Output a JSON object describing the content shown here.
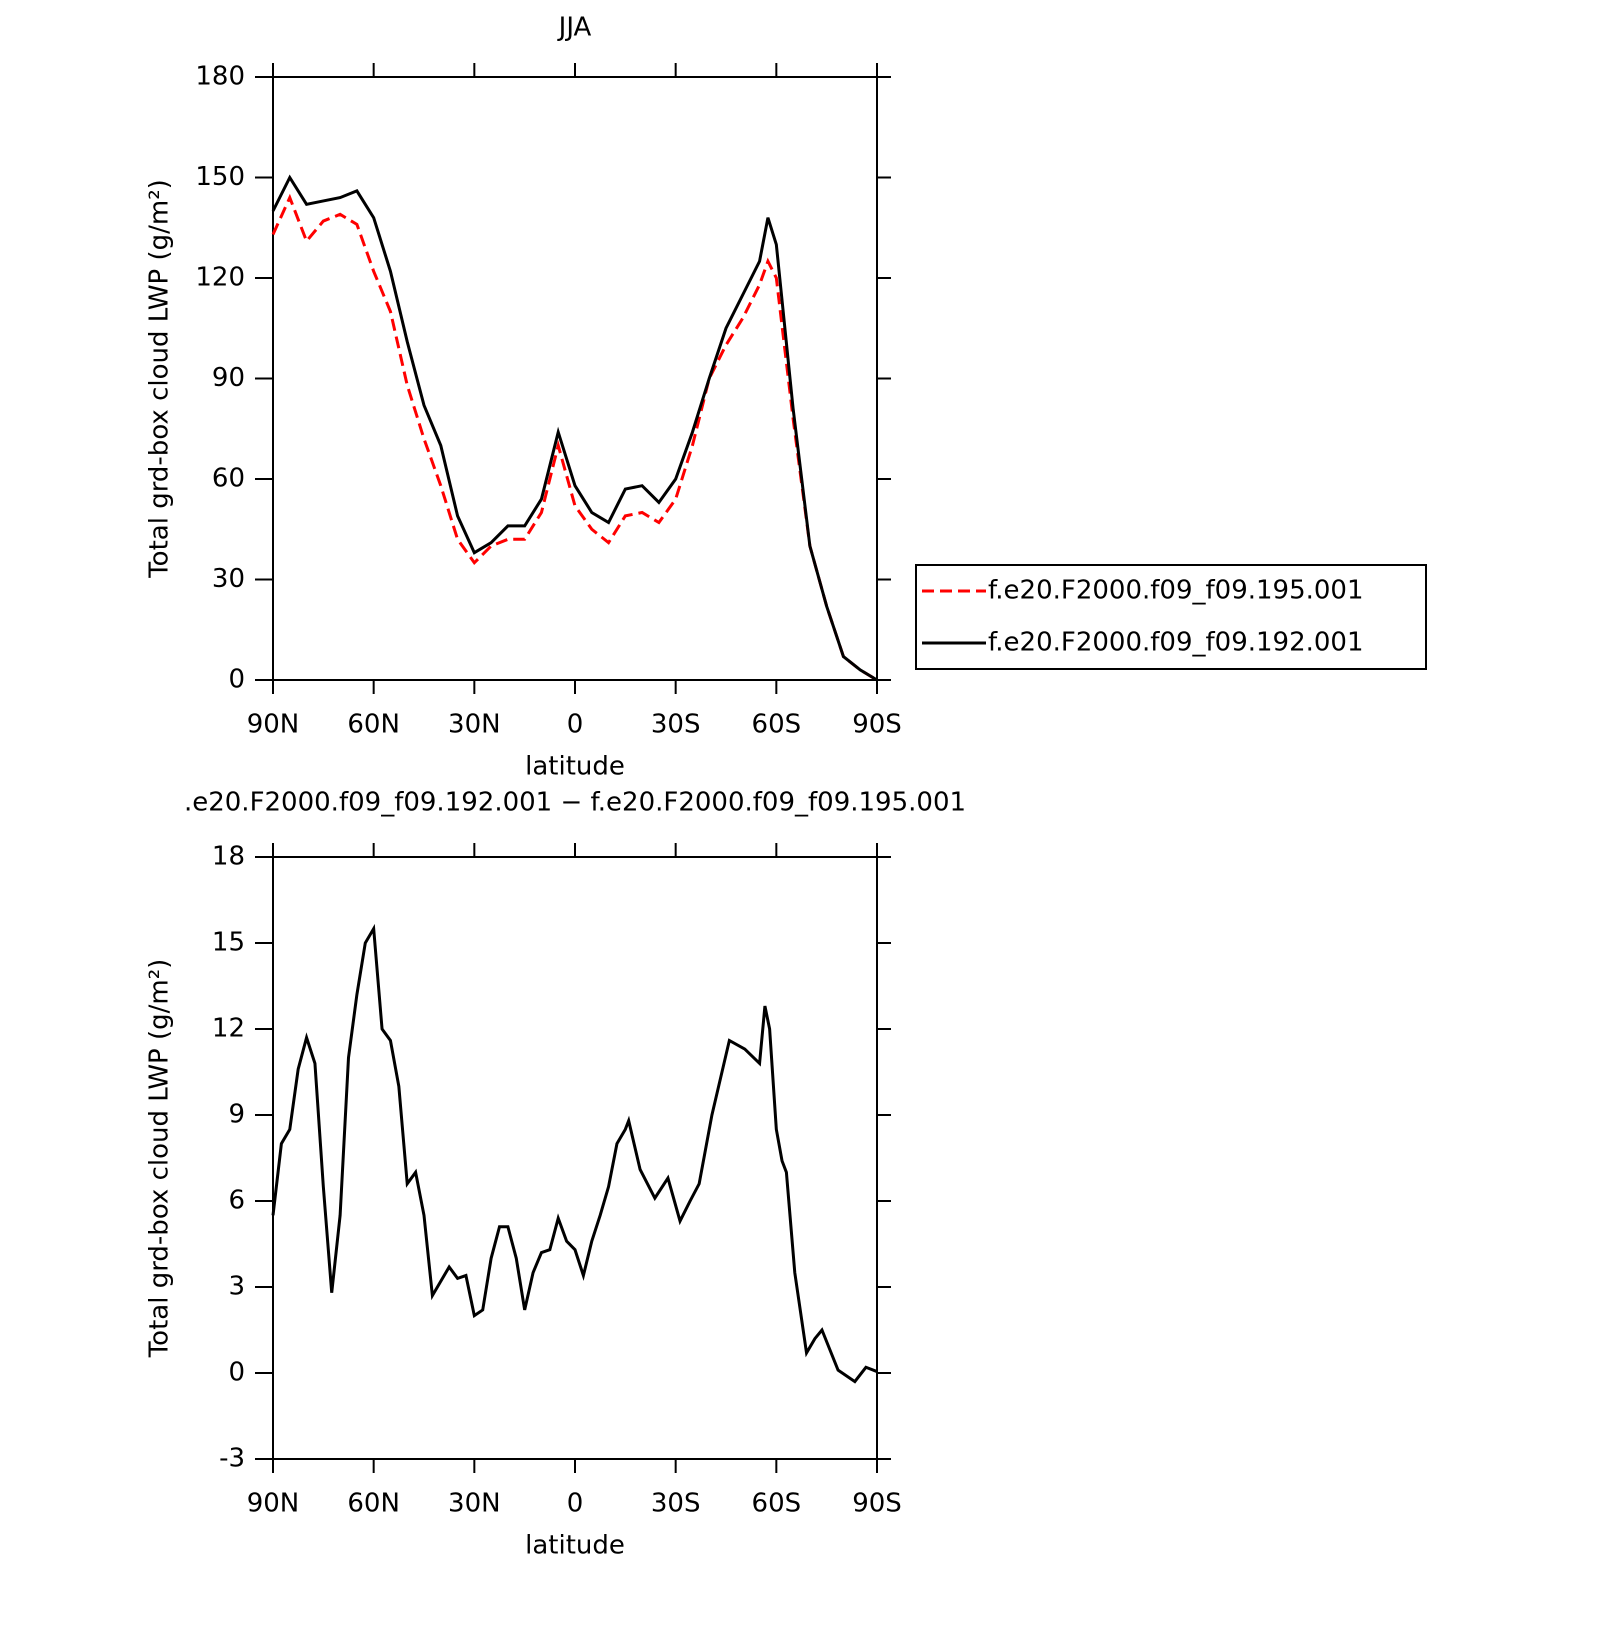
{
  "chart_data": [
    {
      "type": "line",
      "title": "JJA",
      "x_label": "latitude",
      "y_label": "Total grd-box cloud LWP (g/m²)",
      "x": [
        90,
        85,
        80,
        75,
        70,
        65,
        60,
        55,
        50,
        45,
        40,
        35,
        30,
        25,
        20,
        15,
        10,
        5,
        0,
        -5,
        -10,
        -15,
        -20,
        -25,
        -30,
        -35,
        -40,
        -45,
        -50,
        -55,
        -57.5,
        -60,
        -65,
        -70,
        -75,
        -80,
        -85,
        -90
      ],
      "xlim": [
        90,
        -90
      ],
      "xticks": [
        {
          "value": 90,
          "label": "90N"
        },
        {
          "value": 60,
          "label": "60N"
        },
        {
          "value": 30,
          "label": "30N"
        },
        0,
        {
          "value": -30,
          "label": "30S"
        },
        {
          "value": -60,
          "label": "60S"
        },
        {
          "value": -90,
          "label": "90S"
        }
      ],
      "ylim": [
        0,
        180
      ],
      "yticks": [
        0,
        30,
        60,
        90,
        120,
        150,
        180
      ],
      "legend": "right",
      "series": [
        {
          "name": "f.e20.F2000.f09_f09.195.001",
          "color": "#ff0000",
          "style": "dashed",
          "values": [
            133,
            144,
            131,
            137,
            139,
            136,
            122,
            110,
            88,
            72,
            58,
            42,
            35,
            40,
            42,
            42,
            50,
            70,
            52,
            45,
            41,
            49,
            50,
            47,
            54,
            70,
            90,
            100,
            108,
            118,
            125,
            120,
            78,
            40,
            22,
            7,
            3,
            0
          ]
        },
        {
          "name": "f.e20.F2000.f09_f09.192.001",
          "color": "#000000",
          "style": "solid",
          "values": [
            140,
            150,
            142,
            143,
            144,
            146,
            138,
            122,
            101,
            82,
            70,
            49,
            38,
            41,
            46,
            46,
            54,
            74,
            58,
            50,
            47,
            57,
            58,
            53,
            60,
            74,
            90,
            105,
            115,
            125,
            138,
            130,
            81,
            40,
            22,
            7,
            3,
            0
          ]
        }
      ]
    },
    {
      "type": "line",
      "title": ".e20.F2000.f09_f09.192.001 − f.e20.F2000.f09_f09.195.001",
      "x_label": "latitude",
      "y_label": "Total grd-box cloud LWP (g/m²)",
      "x": [
        90,
        87.5,
        85,
        82.5,
        80,
        77.5,
        75,
        72.5,
        70,
        67.5,
        65,
        62.5,
        60,
        57.5,
        55,
        52.5,
        50,
        47.5,
        45,
        42.5,
        40,
        37.5,
        35,
        32.5,
        30,
        27.5,
        25,
        22.5,
        20,
        17.5,
        15,
        12.5,
        10,
        7.5,
        5,
        2.5,
        0,
        -2.5,
        -5,
        -7.5,
        -10,
        -12.5,
        -15,
        -16,
        -19.4,
        -23.8,
        -27.7,
        -31.3,
        -34.3,
        -37,
        -40.8,
        -46,
        -50.6,
        -55,
        -56.6,
        -58,
        -60,
        -61.7,
        -63,
        -65.5,
        -69,
        -71.5,
        -73.6,
        -78.4,
        -83.4,
        -86.7,
        -90
      ],
      "xlim": [
        90,
        -90
      ],
      "xticks": [
        {
          "value": 90,
          "label": "90N"
        },
        {
          "value": 60,
          "label": "60N"
        },
        {
          "value": 30,
          "label": "30N"
        },
        0,
        {
          "value": -30,
          "label": "30S"
        },
        {
          "value": -60,
          "label": "60S"
        },
        {
          "value": -90,
          "label": "90S"
        }
      ],
      "ylim": [
        -3,
        18
      ],
      "yticks": [
        -3,
        0,
        3,
        6,
        9,
        12,
        15,
        18
      ],
      "series": [
        {
          "color": "#000000",
          "style": "solid",
          "values": [
            5.5,
            8,
            8.5,
            10.6,
            11.7,
            10.8,
            6.5,
            2.8,
            5.5,
            11,
            13.2,
            15,
            15.5,
            12,
            11.6,
            10,
            6.6,
            7,
            5.5,
            2.7,
            3.2,
            3.7,
            3.3,
            3.4,
            2,
            2.2,
            4,
            5.1,
            5.1,
            4,
            2.2,
            3.5,
            4.2,
            4.3,
            5.4,
            4.6,
            4.3,
            3.4,
            4.6,
            5.5,
            6.5,
            8,
            8.5,
            8.8,
            7.1,
            6.1,
            6.8,
            5.3,
            6,
            6.6,
            9,
            11.6,
            11.3,
            10.8,
            12.8,
            12,
            8.5,
            7.4,
            7,
            3.5,
            0.7,
            1.2,
            1.5,
            0.1,
            -0.3,
            0.2,
            0.05
          ]
        }
      ]
    }
  ]
}
